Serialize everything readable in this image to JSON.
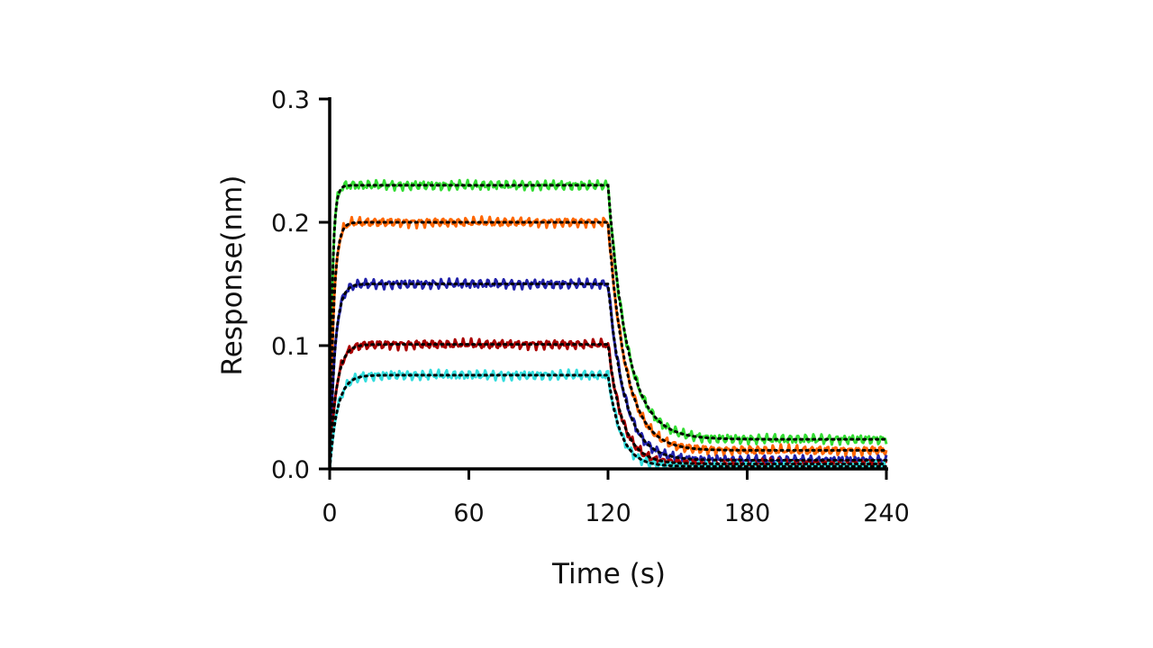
{
  "chart_data": {
    "type": "line",
    "title": "",
    "xlabel": "Time (s)",
    "ylabel": "Response(nm)",
    "xlim": [
      0,
      240
    ],
    "ylim": [
      0,
      0.3
    ],
    "xticks": [
      "0",
      "60",
      "120",
      "180",
      "240"
    ],
    "yticks": [
      "0.0",
      "0.1",
      "0.2",
      "0.3"
    ],
    "grid": false,
    "legend": "none",
    "association_end": 120,
    "series": [
      {
        "color": "#33dd33",
        "plateau": 0.23,
        "residual": 0.024,
        "ka_rate": 0.9,
        "kd_rate": 0.12
      },
      {
        "color": "#ff6600",
        "plateau": 0.2,
        "residual": 0.015,
        "ka_rate": 0.6,
        "kd_rate": 0.13
      },
      {
        "color": "#2222aa",
        "plateau": 0.15,
        "residual": 0.007,
        "ka_rate": 0.45,
        "kd_rate": 0.14
      },
      {
        "color": "#aa0000",
        "plateau": 0.101,
        "residual": 0.004,
        "ka_rate": 0.35,
        "kd_rate": 0.16
      },
      {
        "color": "#33dddd",
        "plateau": 0.076,
        "residual": 0.002,
        "ka_rate": 0.3,
        "kd_rate": 0.18
      }
    ],
    "fit": {
      "color": "#000000",
      "style": "dotted"
    }
  }
}
